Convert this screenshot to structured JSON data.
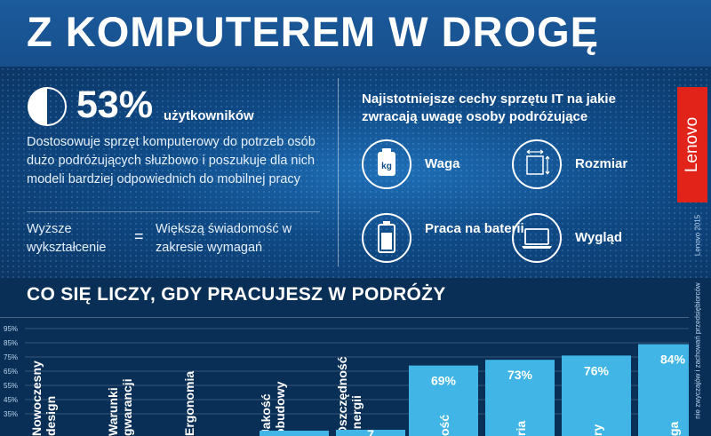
{
  "header": {
    "title": "Z KOMPUTEREM W DROGĘ"
  },
  "stat": {
    "value": "53%",
    "unit": "użytkowników",
    "description": "Dostosowuje sprzęt komputerowy do potrzeb osób dużo podróżujących służbowo i poszukuje dla nich modeli bardziej odpowiednich do mobilnej pracy",
    "equation_left": "Wyższe wykształcenie",
    "equation_sign": "=",
    "equation_right": "Większą świadomość w zakresie wymagań"
  },
  "features": {
    "title": "Najistotniejsze cechy sprzętu IT na jakie zwracają uwagę osoby podróżujące",
    "items": [
      {
        "label": "Waga",
        "icon": "weight-icon",
        "icon_text": "kg"
      },
      {
        "label": "Rozmiar",
        "icon": "size-icon"
      },
      {
        "label": "Praca na baterii",
        "icon": "battery-icon"
      },
      {
        "label": "Wygląd",
        "icon": "laptop-icon"
      }
    ]
  },
  "brand": {
    "name": "Lenovo",
    "color": "#e2231a",
    "copyright": "Lenovo 2015"
  },
  "source_note": "nie zwyczajów i zachowań przedsiębiorców",
  "section": {
    "title": "CO SIĘ LICZY, GDY PRACUJESZ W PODRÓŻY"
  },
  "colors": {
    "bar": "#41b6e6",
    "header": "#1b5a9c",
    "background": "#0a2f57"
  },
  "chart_data": {
    "type": "bar",
    "categories": [
      "Nowoczesny design",
      "Warunki gwarancji",
      "Ergonomia",
      "Jakość obudowy",
      "Oszczędność energii",
      "ość",
      "ria",
      "ry",
      "ga"
    ],
    "values": [
      null,
      null,
      null,
      null,
      null,
      69,
      73,
      76,
      84
    ],
    "value_labels": [
      "",
      "",
      "",
      "",
      "",
      "69%",
      "73%",
      "76%",
      "84%"
    ],
    "partial_value_label": "7",
    "yticks": [
      "95%",
      "85%",
      "75%",
      "65%",
      "55%",
      "45%",
      "35%"
    ],
    "ylim": [
      35,
      95
    ],
    "grid": true
  }
}
